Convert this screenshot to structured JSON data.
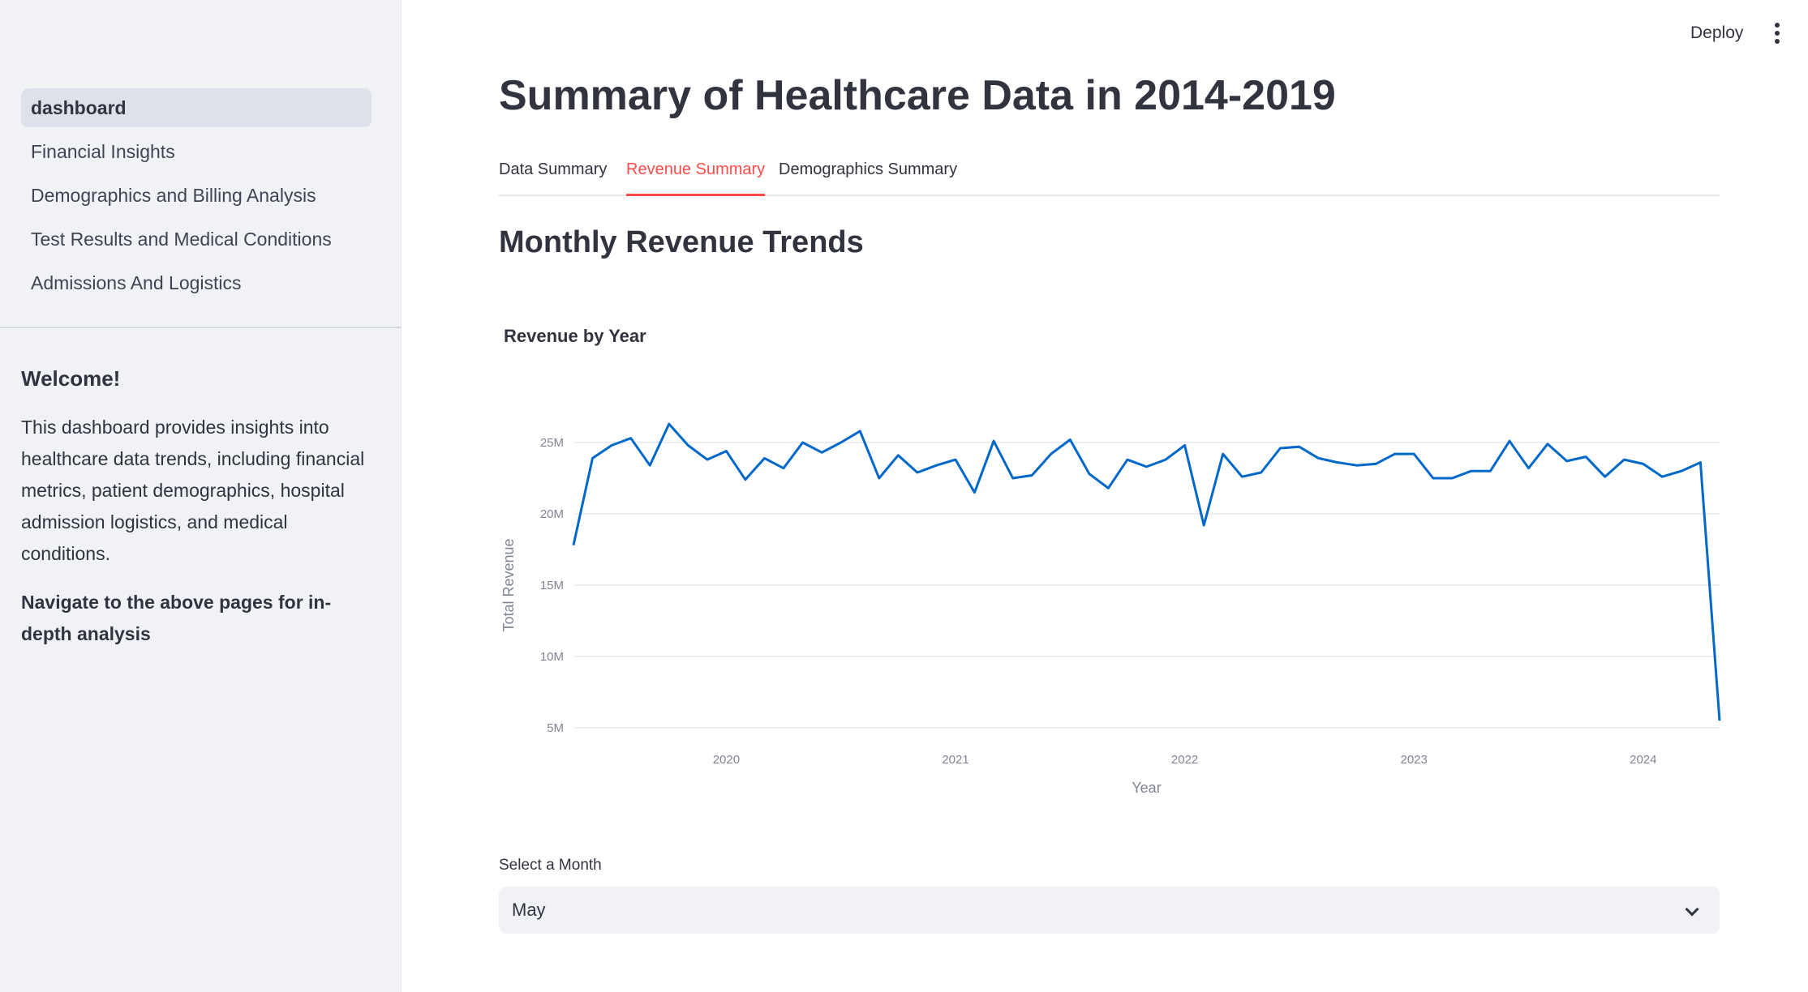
{
  "sidebar": {
    "nav": [
      {
        "label": "dashboard",
        "active": true
      },
      {
        "label": "Financial Insights",
        "active": false
      },
      {
        "label": "Demographics and Billing Analysis",
        "active": false
      },
      {
        "label": "Test Results and Medical Conditions",
        "active": false
      },
      {
        "label": "Admissions And Logistics",
        "active": false
      }
    ],
    "welcome_title": "Welcome!",
    "welcome_text": "This dashboard provides insights into healthcare data trends, including financial metrics, patient demographics, hospital admission logistics, and medical conditions.",
    "nav_hint": "Navigate to the above pages for in-depth analysis"
  },
  "header": {
    "deploy_label": "Deploy",
    "menu_icon": "kebab-menu-icon"
  },
  "main": {
    "title": "Summary of Healthcare Data in 2014-2019",
    "tabs": [
      {
        "label": "Data Summary",
        "active": false
      },
      {
        "label": "Revenue Summary",
        "active": true
      },
      {
        "label": "Demographics Summary",
        "active": false
      }
    ],
    "subtitle": "Monthly Revenue Trends",
    "select_label": "Select a Month",
    "select_value": "May",
    "select_icon": "chevron-down-icon"
  },
  "colors": {
    "accent": "#ff4b4b",
    "line": "#0068c9",
    "sidebar_bg": "#f0f2f6"
  },
  "chart_data": {
    "type": "line",
    "title": "Revenue by Year",
    "xlabel": "Year",
    "ylabel": "Total Revenue",
    "x_ticks": [
      "2020",
      "2021",
      "2022",
      "2023",
      "2024"
    ],
    "y_ticks": [
      "5M",
      "10M",
      "15M",
      "20M",
      "25M"
    ],
    "ylim": [
      5000000,
      25000000
    ],
    "xlim": [
      "2019-05",
      "2024-05"
    ],
    "grid": true,
    "series": [
      {
        "values": [
          [
            "2019-05",
            17.8
          ],
          [
            "2019-06",
            23.9
          ],
          [
            "2019-07",
            24.8
          ],
          [
            "2019-08",
            25.3
          ],
          [
            "2019-09",
            23.4
          ],
          [
            "2019-10",
            26.3
          ],
          [
            "2019-11",
            24.8
          ],
          [
            "2019-12",
            23.8
          ],
          [
            "2020-01",
            24.4
          ],
          [
            "2020-02",
            22.4
          ],
          [
            "2020-03",
            23.9
          ],
          [
            "2020-04",
            23.2
          ],
          [
            "2020-05",
            25.0
          ],
          [
            "2020-06",
            24.3
          ],
          [
            "2020-07",
            25.0
          ],
          [
            "2020-08",
            25.8
          ],
          [
            "2020-09",
            22.5
          ],
          [
            "2020-10",
            24.1
          ],
          [
            "2020-11",
            22.9
          ],
          [
            "2020-12",
            23.4
          ],
          [
            "2021-01",
            23.8
          ],
          [
            "2021-02",
            21.5
          ],
          [
            "2021-03",
            25.1
          ],
          [
            "2021-04",
            22.5
          ],
          [
            "2021-05",
            22.7
          ],
          [
            "2021-06",
            24.2
          ],
          [
            "2021-07",
            25.2
          ],
          [
            "2021-08",
            22.8
          ],
          [
            "2021-09",
            21.8
          ],
          [
            "2021-10",
            23.8
          ],
          [
            "2021-11",
            23.3
          ],
          [
            "2021-12",
            23.8
          ],
          [
            "2022-01",
            24.8
          ],
          [
            "2022-02",
            19.2
          ],
          [
            "2022-03",
            24.2
          ],
          [
            "2022-04",
            22.6
          ],
          [
            "2022-05",
            22.9
          ],
          [
            "2022-06",
            24.6
          ],
          [
            "2022-07",
            24.7
          ],
          [
            "2022-08",
            23.9
          ],
          [
            "2022-09",
            23.6
          ],
          [
            "2022-10",
            23.4
          ],
          [
            "2022-11",
            23.5
          ],
          [
            "2022-12",
            24.2
          ],
          [
            "2023-01",
            24.2
          ],
          [
            "2023-02",
            22.5
          ],
          [
            "2023-03",
            22.5
          ],
          [
            "2023-04",
            23.0
          ],
          [
            "2023-05",
            23.0
          ],
          [
            "2023-06",
            25.1
          ],
          [
            "2023-07",
            23.2
          ],
          [
            "2023-08",
            24.9
          ],
          [
            "2023-09",
            23.7
          ],
          [
            "2023-10",
            24.0
          ],
          [
            "2023-11",
            22.6
          ],
          [
            "2023-12",
            23.8
          ],
          [
            "2024-01",
            23.5
          ],
          [
            "2024-02",
            22.6
          ],
          [
            "2024-03",
            23.0
          ],
          [
            "2024-04",
            23.6
          ],
          [
            "2024-05",
            5.5
          ]
        ],
        "unit": "M"
      }
    ]
  }
}
